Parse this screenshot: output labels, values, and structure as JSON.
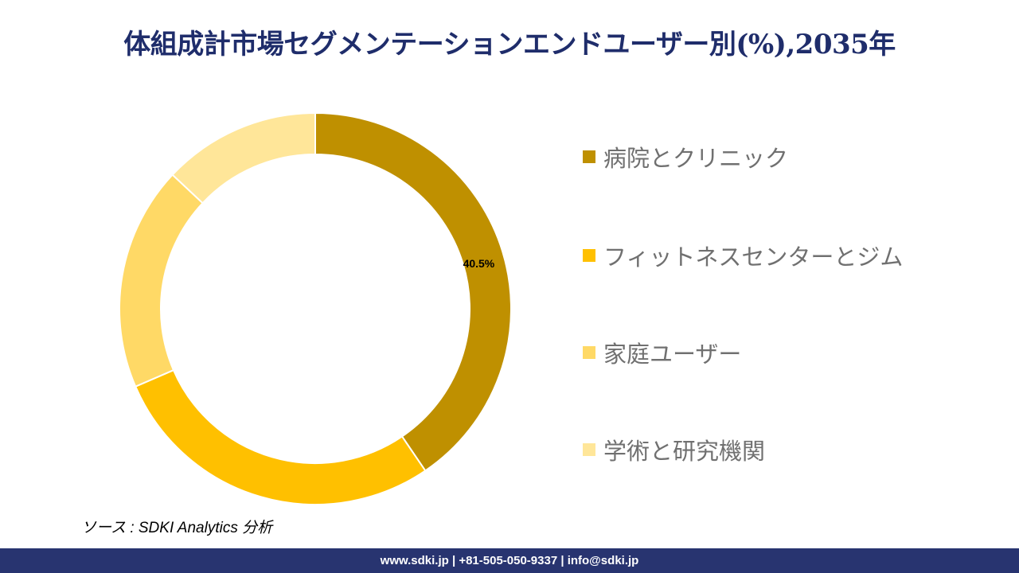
{
  "chart_data": {
    "type": "pie",
    "variant": "donut",
    "title": "体組成計市場セグメンテーションエンドユーザー別(%),2035年",
    "categories": [
      "病院とクリニック",
      "フィットネスセンターとジム",
      "家庭ユーザー",
      "学術と研究機関"
    ],
    "values": [
      40.5,
      28.0,
      18.5,
      13.0
    ],
    "colors": [
      "#BF9000",
      "#FFC000",
      "#FFD966",
      "#FFE699"
    ],
    "data_labels": [
      "40.5%",
      null,
      null,
      null
    ],
    "legend_position": "right"
  },
  "source": "ソース : SDKI Analytics 分析",
  "footer": "www.sdki.jp | +81-505-050-9337 | info@sdki.jp"
}
